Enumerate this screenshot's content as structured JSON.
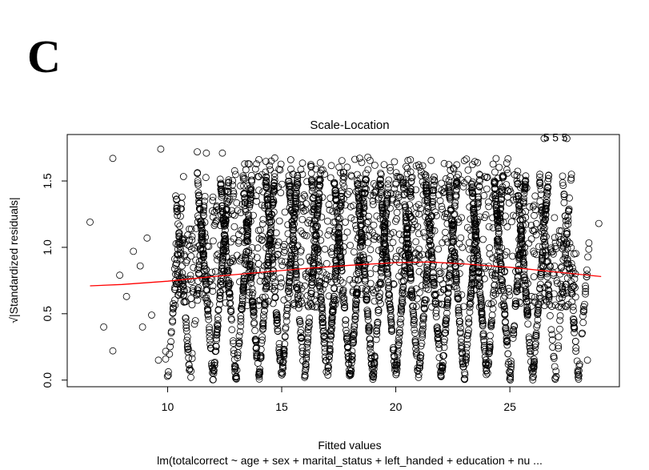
{
  "panel_label": "C",
  "chart_data": {
    "type": "scatter",
    "title": "Scale-Location",
    "xlabel": "Fitted values",
    "ylabel": "√|Standardized residuals|",
    "subtitle": "lm(totalcorrect ~ age + sex + marital_status + left_handed + education + nu ...",
    "xlim": [
      5.6,
      29.8
    ],
    "ylim": [
      -0.05,
      1.85
    ],
    "xticks": [
      10,
      15,
      20,
      25
    ],
    "yticks": [
      0.0,
      0.5,
      1.0,
      1.5
    ],
    "xtick_labels": [
      "10",
      "15",
      "20",
      "25"
    ],
    "ytick_labels": [
      "0.0",
      "0.5",
      "1.0",
      "1.5"
    ],
    "outlier_labels": [
      "5",
      "5",
      "5"
    ],
    "points_description": "dense cloud of open circles forming V-shaped bands at each integer fitted value",
    "outlier_points": [
      {
        "x": 6.6,
        "y": 1.19
      },
      {
        "x": 7.6,
        "y": 1.67
      },
      {
        "x": 7.2,
        "y": 0.4
      },
      {
        "x": 7.6,
        "y": 0.22
      },
      {
        "x": 7.9,
        "y": 0.79
      },
      {
        "x": 8.2,
        "y": 0.63
      },
      {
        "x": 8.5,
        "y": 0.97
      },
      {
        "x": 8.8,
        "y": 0.86
      },
      {
        "x": 9.1,
        "y": 1.07
      },
      {
        "x": 9.3,
        "y": 0.49
      },
      {
        "x": 9.7,
        "y": 1.74
      },
      {
        "x": 9.6,
        "y": 0.15
      },
      {
        "x": 8.9,
        "y": 0.4
      },
      {
        "x": 28.9,
        "y": 1.18
      },
      {
        "x": 28.4,
        "y": 0.15
      },
      {
        "x": 27.5,
        "y": 1.82
      },
      {
        "x": 11.3,
        "y": 1.72
      },
      {
        "x": 11.7,
        "y": 1.71
      },
      {
        "x": 12.4,
        "y": 1.71
      },
      {
        "x": 26.5,
        "y": 1.82
      }
    ],
    "smooth_line": {
      "color": "#ff0000",
      "x": [
        6.6,
        8,
        10,
        12,
        14,
        16,
        18,
        20,
        21.5,
        23,
        25,
        27,
        29
      ],
      "y": [
        0.71,
        0.72,
        0.745,
        0.78,
        0.81,
        0.84,
        0.865,
        0.885,
        0.89,
        0.875,
        0.85,
        0.815,
        0.78
      ]
    },
    "point_color": "#000000",
    "grid": false
  }
}
